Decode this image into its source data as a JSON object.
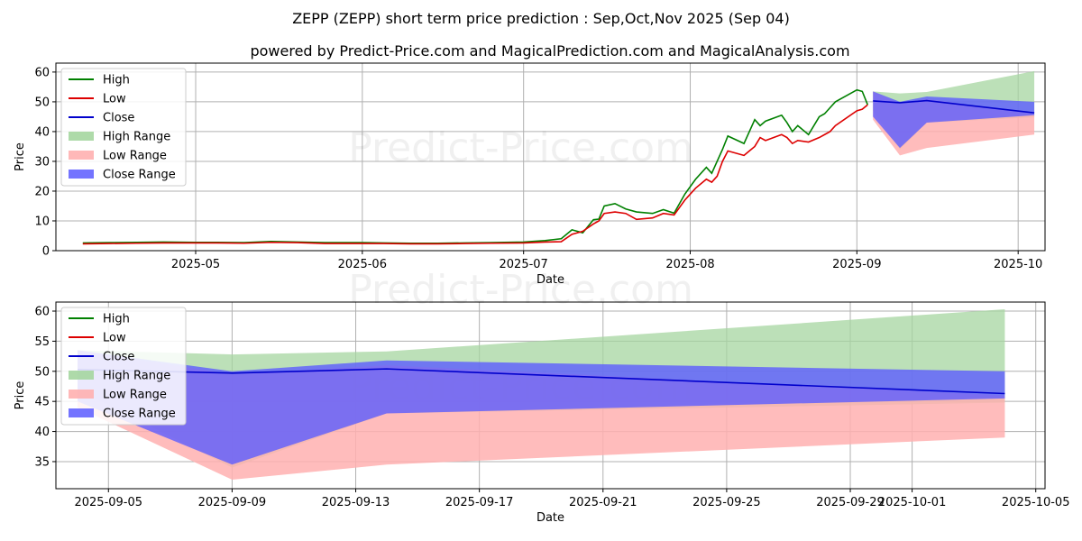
{
  "title": "ZEPP (ZEPP) short term price prediction : Sep,Oct,Nov 2025 (Sep 04)",
  "subtitle": "powered by Predict-Price.com and MagicalPrediction.com and MagicalAnalysis.com",
  "watermark": "Predict-Price.com",
  "colors": {
    "high": "#008000",
    "low": "#dd0000",
    "close": "#0000cc",
    "high_range": "#a5d6a0",
    "low_range": "#ffb0b0",
    "close_range": "#5c5cff"
  },
  "chart_data": [
    {
      "type": "line",
      "xlabel": "Date",
      "ylabel": "Price",
      "ylim": [
        0,
        63
      ],
      "yticks": [
        0,
        10,
        20,
        30,
        40,
        50,
        60
      ],
      "xticks": [
        "2025-05",
        "2025-06",
        "2025-07",
        "2025-08",
        "2025-09",
        "2025-10"
      ],
      "legend": [
        "High",
        "Low",
        "Close",
        "High Range",
        "Low Range",
        "Close Range"
      ],
      "legend_position": "upper-left",
      "history": {
        "dates": [
          "2025-04-10",
          "2025-04-15",
          "2025-04-20",
          "2025-04-25",
          "2025-05-01",
          "2025-05-05",
          "2025-05-10",
          "2025-05-15",
          "2025-05-20",
          "2025-05-25",
          "2025-06-01",
          "2025-06-05",
          "2025-06-10",
          "2025-06-15",
          "2025-06-20",
          "2025-06-25",
          "2025-07-01",
          "2025-07-05",
          "2025-07-08",
          "2025-07-10",
          "2025-07-12",
          "2025-07-14",
          "2025-07-15",
          "2025-07-16",
          "2025-07-18",
          "2025-07-20",
          "2025-07-22",
          "2025-07-25",
          "2025-07-27",
          "2025-07-29",
          "2025-07-31",
          "2025-08-02",
          "2025-08-04",
          "2025-08-05",
          "2025-08-06",
          "2025-08-07",
          "2025-08-08",
          "2025-08-11",
          "2025-08-12",
          "2025-08-13",
          "2025-08-14",
          "2025-08-15",
          "2025-08-18",
          "2025-08-19",
          "2025-08-20",
          "2025-08-21",
          "2025-08-23",
          "2025-08-25",
          "2025-08-26",
          "2025-08-27",
          "2025-08-28",
          "2025-09-01",
          "2025-09-02",
          "2025-09-03"
        ],
        "series": [
          {
            "name": "High",
            "values": [
              2.6,
              2.7,
              2.8,
              2.9,
              2.8,
              2.8,
              2.7,
              3.1,
              2.9,
              2.7,
              2.7,
              2.6,
              2.5,
              2.5,
              2.6,
              2.7,
              2.9,
              3.4,
              4.0,
              7.0,
              6.0,
              10.4,
              10.6,
              15.0,
              15.8,
              14.0,
              13.0,
              12.5,
              13.8,
              12.6,
              19.0,
              24.0,
              28.0,
              26.0,
              30.0,
              34.0,
              38.5,
              36.0,
              40.0,
              44.0,
              42.0,
              43.5,
              45.5,
              43.0,
              40.0,
              42.0,
              39.0,
              45.0,
              46.0,
              48.0,
              50.0,
              54.0,
              53.5,
              49.0
            ]
          },
          {
            "name": "Low",
            "values": [
              2.3,
              2.4,
              2.5,
              2.6,
              2.6,
              2.6,
              2.5,
              2.8,
              2.7,
              2.4,
              2.4,
              2.4,
              2.3,
              2.3,
              2.4,
              2.5,
              2.6,
              2.9,
              3.0,
              5.5,
              6.5,
              9.0,
              10.0,
              12.5,
              13.0,
              12.5,
              10.5,
              11.0,
              12.5,
              12.0,
              17.0,
              21.0,
              24.0,
              23.0,
              25.0,
              30.0,
              33.5,
              32.0,
              33.5,
              35.0,
              38.0,
              37.0,
              39.0,
              38.0,
              36.0,
              37.0,
              36.5,
              38.0,
              39.0,
              40.0,
              42.0,
              47.0,
              47.5,
              49.0
            ]
          }
        ]
      },
      "forecast": {
        "dates": [
          "2025-09-04",
          "2025-09-09",
          "2025-09-14",
          "2025-10-04"
        ],
        "close": [
          50.3,
          49.7,
          50.4,
          46.3
        ],
        "high_range": [
          [
            47.0,
            53.5
          ],
          [
            34.0,
            52.8
          ],
          [
            43.0,
            53.3
          ],
          [
            44.8,
            60.3
          ]
        ],
        "low_range": [
          [
            44.0,
            53.5
          ],
          [
            32.0,
            49.5
          ],
          [
            34.5,
            51.0
          ],
          [
            39.0,
            46.0
          ]
        ],
        "close_range": [
          [
            45.0,
            53.5
          ],
          [
            34.5,
            50.0
          ],
          [
            43.0,
            51.8
          ],
          [
            45.5,
            50.0
          ]
        ]
      }
    },
    {
      "type": "line",
      "xlabel": "Date",
      "ylabel": "Price",
      "ylim": [
        30.5,
        61.5
      ],
      "yticks": [
        35,
        40,
        45,
        50,
        55,
        60
      ],
      "xticks": [
        "2025-09-05",
        "2025-09-09",
        "2025-09-13",
        "2025-09-17",
        "2025-09-21",
        "2025-09-25",
        "2025-09-29",
        "2025-10-01",
        "2025-10-05"
      ],
      "legend": [
        "High",
        "Low",
        "Close",
        "High Range",
        "Low Range",
        "Close Range"
      ],
      "legend_position": "upper-left"
    }
  ]
}
